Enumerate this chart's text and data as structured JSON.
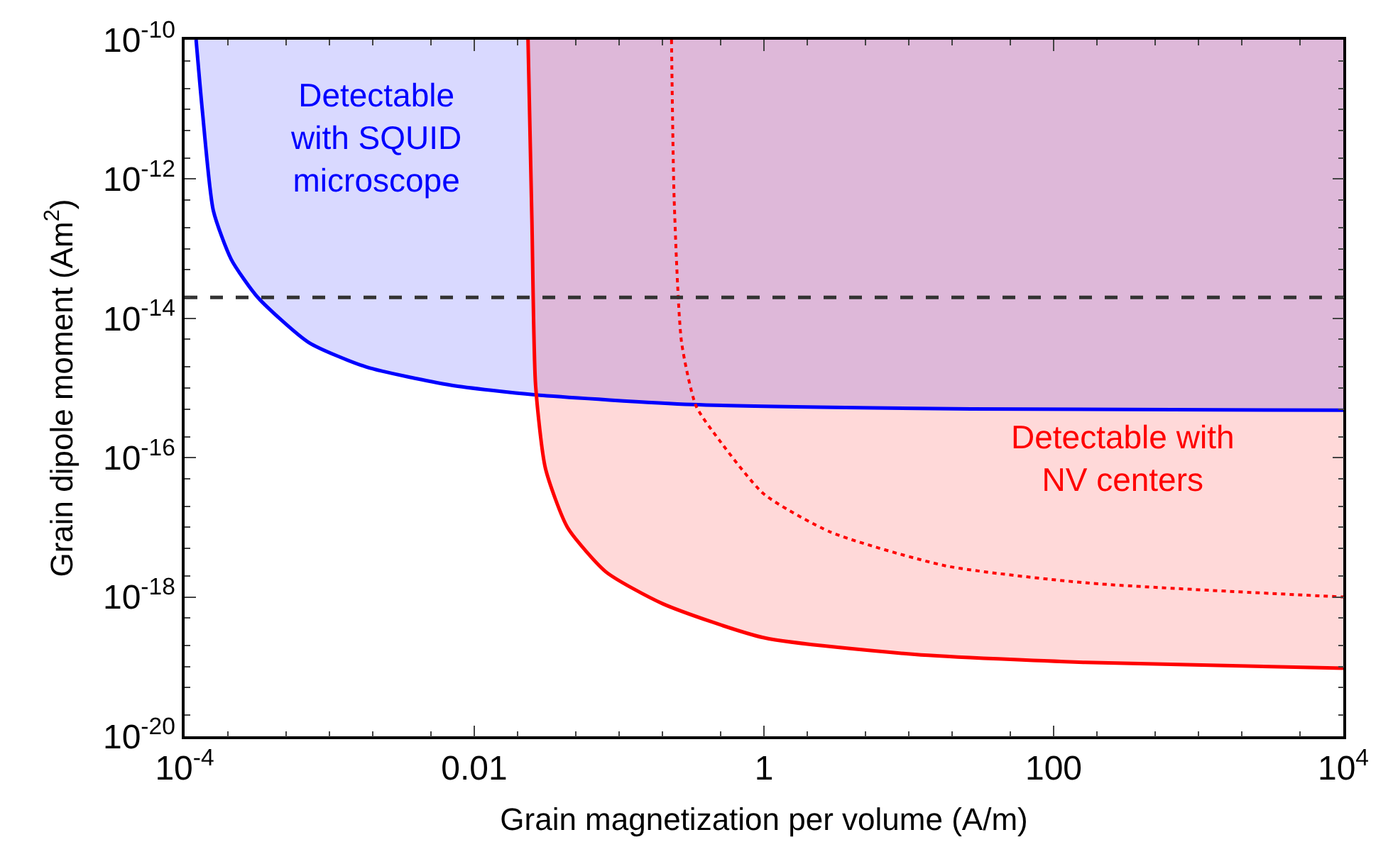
{
  "chart_data": {
    "type": "line",
    "xlabel": "Grain magnetization per volume (A/m)",
    "ylabel": "Grain dipole moment (Am$^{2}$)",
    "series": [
      {
        "type": "area",
        "color": "#0000ff",
        "line_style": "solid",
        "x": [
          0.00012,
          0.000133,
          0.000158,
          0.00021,
          0.00032,
          0.00072,
          0.0018,
          0.0069,
          0.026,
          0.32,
          27,
          10000
        ],
        "values": [
          1e-10,
          9e-12,
          3.5e-13,
          7e-14,
          2e-14,
          4.5e-15,
          2e-15,
          1.1e-15,
          8e-16,
          5.8e-16,
          5e-16,
          4.8e-16
        ]
      },
      {
        "type": "area",
        "color": "#ff0000",
        "line_style": "solid",
        "x": [
          0.0235,
          0.025,
          0.0265,
          0.031,
          0.044,
          0.081,
          0.2,
          1,
          11,
          165,
          10000
        ],
        "values": [
          1e-10,
          2.5e-13,
          1.1e-15,
          7e-17,
          1e-17,
          2.3e-18,
          8e-19,
          2.6e-19,
          1.5e-19,
          1.15e-19,
          9.5e-20
        ]
      },
      {
        "color": "#ff0000",
        "line_style": "dotted",
        "x": [
          0.23,
          0.24,
          0.27,
          0.34,
          0.49,
          1,
          2.9,
          18,
          165,
          10000
        ],
        "values": [
          1e-10,
          5e-13,
          4.5e-15,
          5.5e-16,
          1.8e-16,
          3e-17,
          8.5e-18,
          2.8e-18,
          1.6e-18,
          1e-18
        ]
      }
    ],
    "annotations": [
      "Detectable\nwith SQUID\nmicroscope",
      "Detectable with\nNV centers"
    ],
    "ref_lines": [
      {
        "axis": "y",
        "value": 2e-14,
        "color": "#333333",
        "line_style": "dashed"
      }
    ],
    "log": "xy",
    "marker": "none",
    "xlim": [
      0.0001,
      10000
    ],
    "ylim": [
      1e-20,
      1e-10
    ],
    "xticks": [
      {
        "value": 0.0001,
        "label": "10$^{-4}$"
      },
      0.01,
      1,
      100,
      {
        "value": 10000,
        "label": "10$^{4}$"
      }
    ],
    "yticks": [
      {
        "value": 1e-20,
        "label": "10$^{-20}$"
      },
      {
        "value": 1e-18,
        "label": "10$^{-18}$"
      },
      {
        "value": 1e-16,
        "label": "10$^{-16}$"
      },
      {
        "value": 1e-14,
        "label": "10$^{-14}$"
      },
      {
        "value": 1e-12,
        "label": "10$^{-12}$"
      },
      {
        "value": 1e-10,
        "label": "10$^{-10}$"
      }
    ]
  }
}
